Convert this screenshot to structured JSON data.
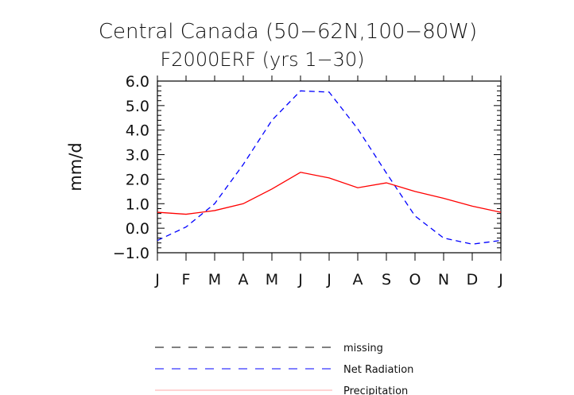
{
  "chart_data": {
    "type": "line",
    "title": "Central Canada (50−62N,100−80W)",
    "subtitle": "F2000ERF (yrs 1−30)",
    "xlabel": "",
    "ylabel": "mm/d",
    "categories": [
      "J",
      "F",
      "M",
      "A",
      "M",
      "J",
      "J",
      "A",
      "S",
      "O",
      "N",
      "D",
      "J"
    ],
    "x": [
      0,
      1,
      2,
      3,
      4,
      5,
      6,
      7,
      8,
      9,
      10,
      11,
      12
    ],
    "ylim": [
      -1.0,
      6.0
    ],
    "yticks": [
      -1.0,
      0.0,
      1.0,
      2.0,
      3.0,
      4.0,
      5.0,
      6.0
    ],
    "ytick_labels": [
      "−1.0",
      "0.0",
      "1.0",
      "2.0",
      "3.0",
      "4.0",
      "5.0",
      "6.0"
    ],
    "series": [
      {
        "name": "Net Radiation",
        "color": "#0000ff",
        "style": "dashed",
        "values": [
          -0.5,
          0.05,
          1.0,
          2.6,
          4.4,
          5.6,
          5.55,
          4.05,
          2.25,
          0.5,
          -0.4,
          -0.65,
          -0.5
        ]
      },
      {
        "name": "Precipitation",
        "color": "#ff0000",
        "style": "solid",
        "values": [
          0.65,
          0.57,
          0.72,
          1.0,
          1.6,
          2.28,
          2.05,
          1.65,
          1.85,
          1.5,
          1.22,
          0.9,
          0.65
        ]
      }
    ],
    "legend": {
      "position": "bottom",
      "entries": [
        {
          "label": "missing",
          "color": "#000000",
          "style": "dashed"
        },
        {
          "label": "Net Radiation",
          "color": "#0000ff",
          "style": "dashed"
        },
        {
          "label": "Precipitation",
          "color": "#ffaaaa",
          "style": "solid"
        }
      ]
    }
  }
}
